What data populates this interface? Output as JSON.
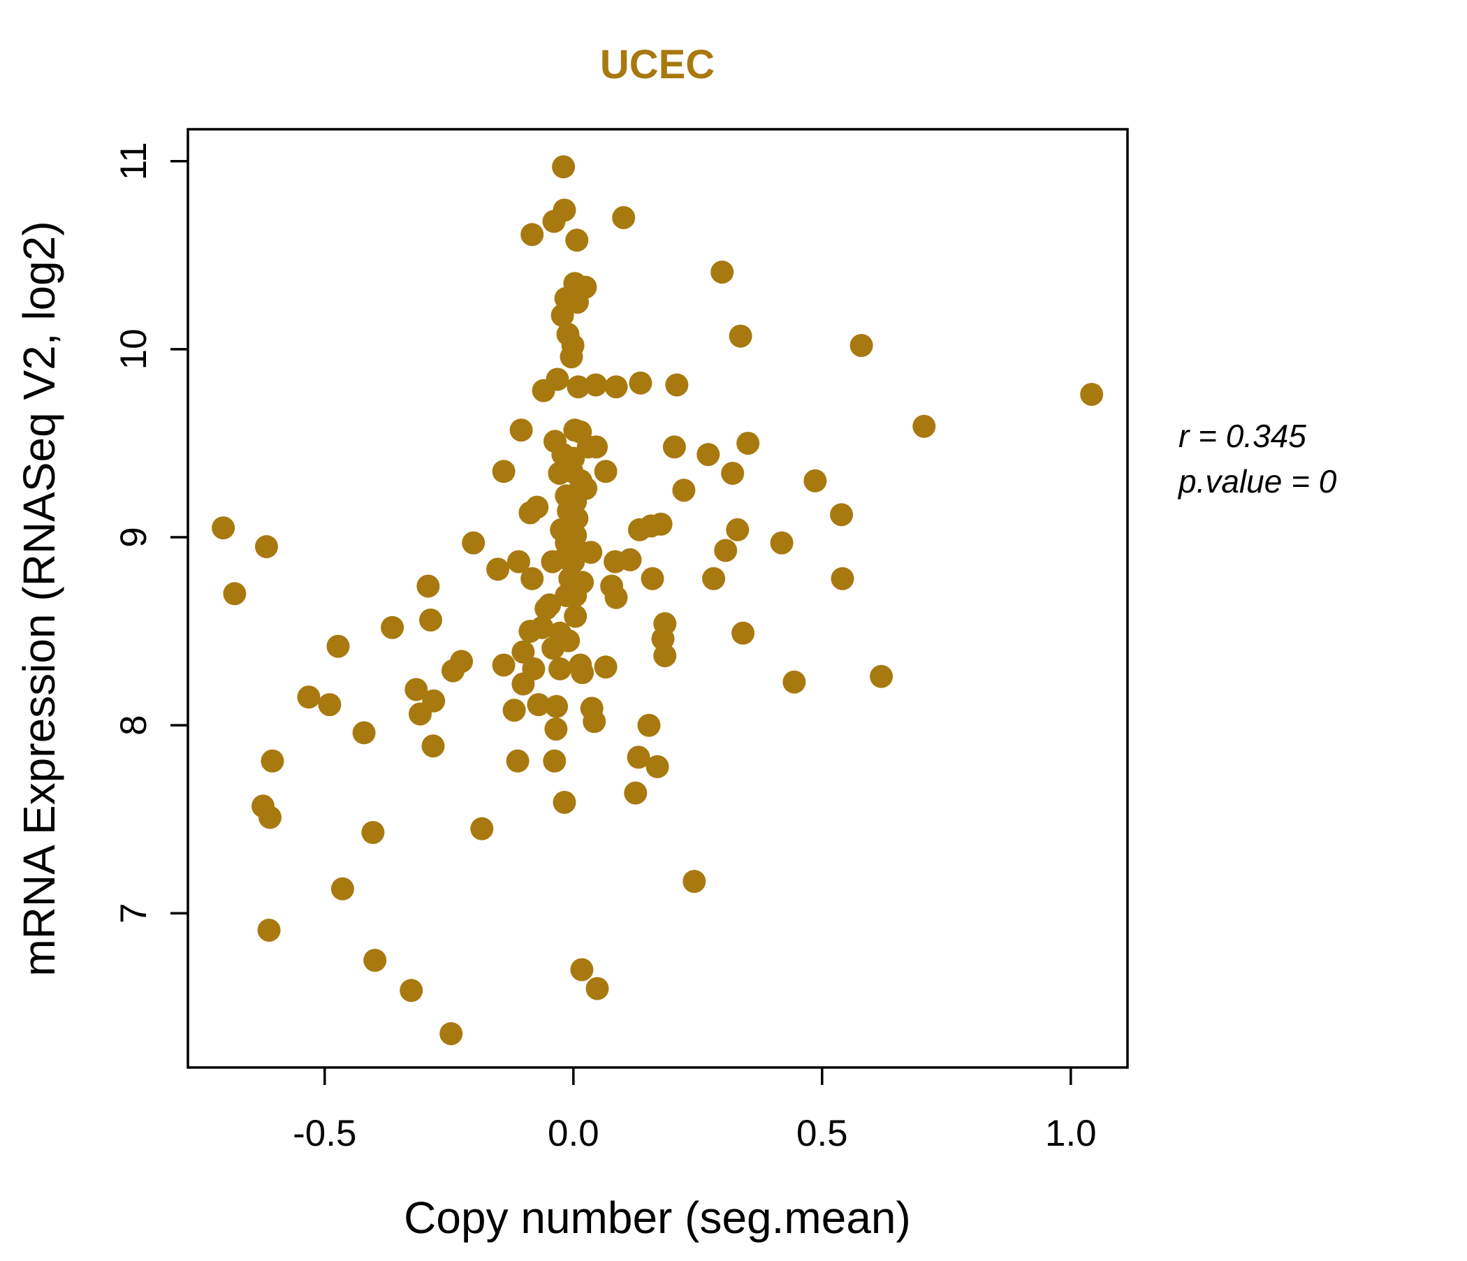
{
  "title": "UCEC",
  "annotation": {
    "r_line": "r = 0.345",
    "p_line": "p.value = 0"
  },
  "colors": {
    "points": "#A8790F",
    "title": "#A8790F",
    "axis": "#000000"
  },
  "chart_data": {
    "type": "scatter",
    "title": "UCEC",
    "xlabel": "Copy number (seg.mean)",
    "ylabel": "mRNA Expression (RNASeq V2, log2)",
    "x_ticks": [
      -0.5,
      0.0,
      0.5,
      1.0
    ],
    "y_ticks": [
      7,
      8,
      9,
      10,
      11
    ],
    "xlim": [
      -0.775,
      1.114
    ],
    "ylim": [
      6.18,
      11.17
    ],
    "grid": false,
    "legend": "none",
    "correlation_r": 0.345,
    "p_value": 0,
    "points": [
      [
        -0.02,
        10.97
      ],
      [
        -0.018,
        10.74
      ],
      [
        -0.039,
        10.68
      ],
      [
        -0.083,
        10.61
      ],
      [
        0.007,
        10.58
      ],
      [
        0.101,
        10.7
      ],
      [
        0.299,
        10.41
      ],
      [
        0.003,
        10.35
      ],
      [
        0.024,
        10.33
      ],
      [
        -0.015,
        10.27
      ],
      [
        0.008,
        10.25
      ],
      [
        -0.022,
        10.18
      ],
      [
        -0.011,
        10.08
      ],
      [
        -0.001,
        10.02
      ],
      [
        -0.004,
        9.96
      ],
      [
        0.336,
        10.07
      ],
      [
        -0.032,
        9.84
      ],
      [
        -0.06,
        9.78
      ],
      [
        0.01,
        9.8
      ],
      [
        0.045,
        9.81
      ],
      [
        0.086,
        9.8
      ],
      [
        0.135,
        9.82
      ],
      [
        0.208,
        9.81
      ],
      [
        -0.105,
        9.57
      ],
      [
        0.003,
        9.57
      ],
      [
        0.014,
        9.56
      ],
      [
        -0.037,
        9.51
      ],
      [
        0.03,
        9.48
      ],
      [
        0.046,
        9.48
      ],
      [
        0.203,
        9.48
      ],
      [
        0.351,
        9.5
      ],
      [
        0.271,
        9.44
      ],
      [
        0.579,
        10.02
      ],
      [
        1.042,
        9.76
      ],
      [
        0.705,
        9.59
      ],
      [
        -0.021,
        9.44
      ],
      [
        0.0,
        9.42
      ],
      [
        -0.028,
        9.34
      ],
      [
        -0.003,
        9.35
      ],
      [
        0.065,
        9.35
      ],
      [
        0.015,
        9.3
      ],
      [
        0.025,
        9.26
      ],
      [
        0.32,
        9.34
      ],
      [
        0.486,
        9.3
      ],
      [
        0.222,
        9.25
      ],
      [
        -0.014,
        9.22
      ],
      [
        0.004,
        9.19
      ],
      [
        -0.073,
        9.16
      ],
      [
        -0.087,
        9.13
      ],
      [
        -0.01,
        9.14
      ],
      [
        0.007,
        9.1
      ],
      [
        -0.007,
        9.06
      ],
      [
        -0.024,
        9.04
      ],
      [
        0.004,
        9.01
      ],
      [
        -0.014,
        8.97
      ],
      [
        0.001,
        8.97
      ],
      [
        0.133,
        9.04
      ],
      [
        0.156,
        9.06
      ],
      [
        0.176,
        9.07
      ],
      [
        0.33,
        9.04
      ],
      [
        0.419,
        8.97
      ],
      [
        0.306,
        8.93
      ],
      [
        0.035,
        8.92
      ],
      [
        -0.017,
        8.89
      ],
      [
        0.0,
        8.87
      ],
      [
        -0.042,
        8.87
      ],
      [
        -0.11,
        8.87
      ],
      [
        0.084,
        8.87
      ],
      [
        0.114,
        8.88
      ],
      [
        -0.083,
        8.78
      ],
      [
        -0.007,
        8.78
      ],
      [
        0.018,
        8.76
      ],
      [
        0.159,
        8.78
      ],
      [
        0.282,
        8.78
      ],
      [
        0.077,
        8.74
      ],
      [
        0.086,
        8.68
      ],
      [
        -0.003,
        8.72
      ],
      [
        0.004,
        8.69
      ],
      [
        -0.014,
        8.69
      ],
      [
        -0.048,
        8.64
      ],
      [
        -0.055,
        8.62
      ],
      [
        0.004,
        8.58
      ],
      [
        0.184,
        8.54
      ],
      [
        0.18,
        8.46
      ],
      [
        0.341,
        8.49
      ],
      [
        -0.087,
        8.5
      ],
      [
        -0.063,
        8.52
      ],
      [
        -0.027,
        8.49
      ],
      [
        -0.01,
        8.45
      ],
      [
        -0.041,
        8.41
      ],
      [
        -0.101,
        8.39
      ],
      [
        0.184,
        8.37
      ],
      [
        -0.08,
        8.3
      ],
      [
        -0.027,
        8.3
      ],
      [
        0.014,
        8.32
      ],
      [
        0.018,
        8.28
      ],
      [
        0.065,
        8.31
      ],
      [
        -0.101,
        8.22
      ],
      [
        0.444,
        8.23
      ],
      [
        -0.07,
        8.11
      ],
      [
        -0.034,
        8.1
      ],
      [
        0.037,
        8.09
      ],
      [
        0.042,
        8.02
      ],
      [
        -0.035,
        7.98
      ],
      [
        0.152,
        8.0
      ],
      [
        -0.14,
        9.35
      ],
      [
        -0.704,
        9.05
      ],
      [
        -0.617,
        8.95
      ],
      [
        -0.681,
        8.7
      ],
      [
        -0.201,
        8.97
      ],
      [
        -0.152,
        8.83
      ],
      [
        -0.292,
        8.74
      ],
      [
        -0.287,
        8.56
      ],
      [
        -0.364,
        8.52
      ],
      [
        -0.473,
        8.42
      ],
      [
        -0.225,
        8.34
      ],
      [
        -0.242,
        8.29
      ],
      [
        -0.14,
        8.32
      ],
      [
        -0.316,
        8.19
      ],
      [
        -0.281,
        8.13
      ],
      [
        -0.308,
        8.06
      ],
      [
        -0.532,
        8.15
      ],
      [
        -0.49,
        8.11
      ],
      [
        -0.421,
        7.96
      ],
      [
        -0.282,
        7.89
      ],
      [
        -0.119,
        8.08
      ],
      [
        0.539,
        9.12
      ],
      [
        0.541,
        8.78
      ],
      [
        0.619,
        8.26
      ],
      [
        -0.112,
        7.81
      ],
      [
        -0.038,
        7.81
      ],
      [
        0.131,
        7.83
      ],
      [
        -0.605,
        7.81
      ],
      [
        -0.624,
        7.57
      ],
      [
        -0.61,
        7.51
      ],
      [
        -0.403,
        7.43
      ],
      [
        -0.184,
        7.45
      ],
      [
        -0.464,
        7.13
      ],
      [
        -0.612,
        6.91
      ],
      [
        -0.399,
        6.75
      ],
      [
        -0.326,
        6.59
      ],
      [
        -0.246,
        6.36
      ],
      [
        0.169,
        7.78
      ],
      [
        0.125,
        7.64
      ],
      [
        -0.018,
        7.59
      ],
      [
        0.243,
        7.17
      ],
      [
        0.017,
        6.7
      ],
      [
        0.048,
        6.6
      ]
    ]
  }
}
